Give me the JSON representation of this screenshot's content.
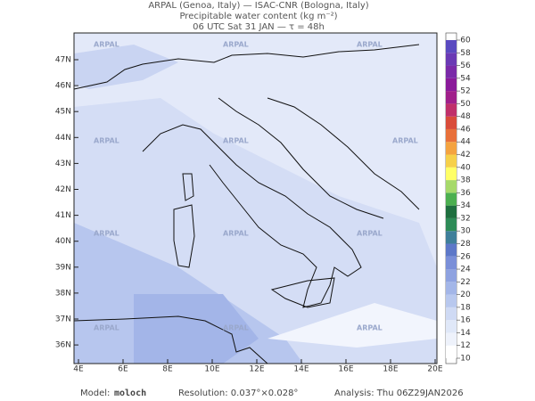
{
  "header": {
    "line1": "ARPAL (Genoa, Italy)  —  ISAC-CNR (Bologna, Italy)",
    "line2": "Precipitable water content (kg m⁻²)",
    "line3": "06 UTC Sat 31 JAN  —  τ = 48h"
  },
  "map": {
    "lon_labels": [
      "4E",
      "6E",
      "8E",
      "10E",
      "12E",
      "14E",
      "16E",
      "18E",
      "20E"
    ],
    "lat_labels": [
      "47N",
      "46N",
      "45N",
      "44N",
      "43N",
      "42N",
      "41N",
      "40N",
      "39N",
      "38N",
      "37N",
      "36N"
    ],
    "watermark": "ARPAL"
  },
  "colorbar": {
    "ticks": [
      10,
      12,
      14,
      16,
      18,
      20,
      22,
      24,
      26,
      28,
      30,
      32,
      34,
      36,
      38,
      40,
      42,
      44,
      46,
      48,
      50,
      52,
      54,
      56,
      58,
      60
    ],
    "colors": [
      "#ffffff",
      "#eef2fb",
      "#e0e8f8",
      "#cfdaf4",
      "#b8c8ee",
      "#a3b6e8",
      "#8ea2e0",
      "#7a8fd8",
      "#5d78c8",
      "#3f7f9a",
      "#2e8b57",
      "#1f6f3f",
      "#4caf50",
      "#a6d96a",
      "#ffff66",
      "#f6d04a",
      "#f4a340",
      "#e8703a",
      "#d94c3a",
      "#c0306a",
      "#a0208a",
      "#8a1a9a",
      "#7a2aa8",
      "#6a3ab4",
      "#5a4ac0"
    ]
  },
  "footer": {
    "model_label": "Model:",
    "model": "moloch",
    "resolution": "Resolution: 0.037°×0.028°",
    "analysis": "Analysis: Thu 06Z29JAN2026"
  }
}
